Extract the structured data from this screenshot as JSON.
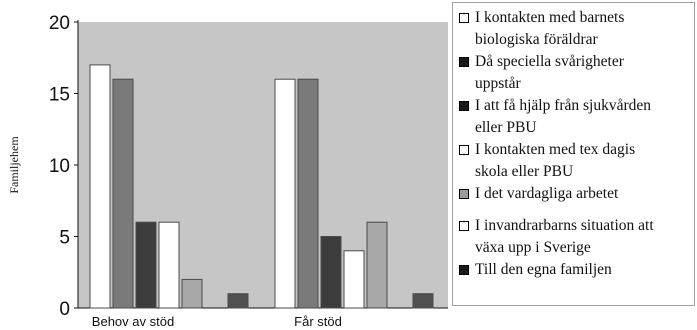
{
  "chart_data": {
    "type": "bar",
    "ylabel": "Familjehem",
    "ylim": [
      0,
      20
    ],
    "yticks": [
      0,
      5,
      10,
      15,
      20
    ],
    "categories": [
      "Behov av stöd",
      "Får stöd"
    ],
    "grid": false,
    "legend_position": "right",
    "series": [
      {
        "name": "I kontakten med barnets biologiska föräldrar",
        "color": "#ffffff",
        "values": [
          17,
          16
        ]
      },
      {
        "name": "Då speciella svårigheter uppstår",
        "color": "#7a7a7a",
        "values": [
          16,
          16
        ]
      },
      {
        "name": "I att få hjälp från sjukvården eller PBU",
        "color": "#3c3c3c",
        "values": [
          6,
          5
        ]
      },
      {
        "name": "I kontakten med tex dagis skola eller PBU",
        "color": "#ffffff",
        "values": [
          6,
          4
        ]
      },
      {
        "name": "I det vardagliga arbetet",
        "color": "#a8a8a8",
        "values": [
          2,
          6
        ]
      },
      {
        "name": "I invandrarbarns situation att växa upp i Sverige",
        "color": "#ffffff",
        "values": [
          0,
          0
        ]
      },
      {
        "name": "Till den egna familjen",
        "color": "#505050",
        "values": [
          1,
          1
        ]
      }
    ]
  },
  "legend": {
    "items": [
      {
        "lines": [
          "I kontakten med barnets",
          "biologiska föräldrar"
        ],
        "swatch": "#ffffff"
      },
      {
        "lines": [
          "Då speciella svårigheter",
          "uppstår"
        ],
        "swatch": "#1a1a1a"
      },
      {
        "lines": [
          "I att få hjälp från sjukvården",
          "eller PBU"
        ],
        "swatch": "#1a1a1a"
      },
      {
        "lines": [
          "I kontakten med tex dagis",
          "skola eller PBU"
        ],
        "swatch": "#ffffff"
      },
      {
        "lines": [
          "I det vardagliga arbetet"
        ],
        "swatch": "#9a9a9a"
      },
      {
        "lines": [
          "I invandrarbarns situation att",
          "växa upp i Sverige"
        ],
        "swatch": "#ffffff"
      },
      {
        "lines": [
          "Till den egna familjen"
        ],
        "swatch": "#1a1a1a"
      }
    ]
  }
}
